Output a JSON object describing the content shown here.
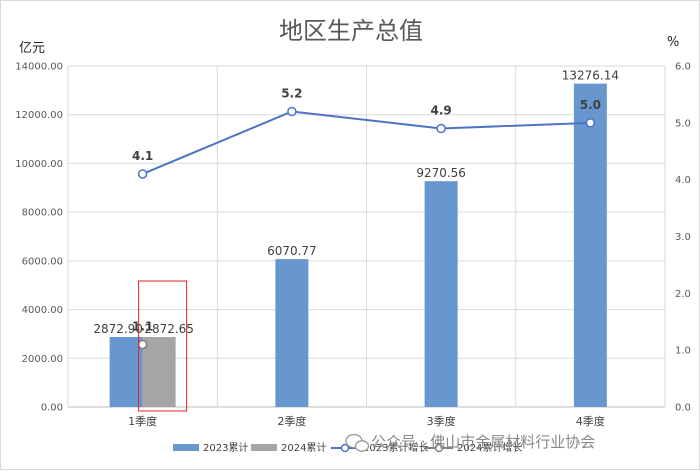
{
  "chart_data": {
    "type": "bar",
    "title": "地区生产总值",
    "ylabel_left": "亿元",
    "ylabel_right": "%",
    "categories": [
      "1季度",
      "2季度",
      "3季度",
      "4季度"
    ],
    "ylim_left": [
      0,
      14000
    ],
    "ylim_right": [
      0,
      6
    ],
    "left_ticks": [
      "0.00",
      "2000.00",
      "4000.00",
      "6000.00",
      "8000.00",
      "10000.00",
      "12000.00",
      "14000.00"
    ],
    "right_ticks": [
      "0.0",
      "1.0",
      "2.0",
      "3.0",
      "4.0",
      "5.0",
      "6.0"
    ],
    "grid": true,
    "legend_position": "bottom",
    "bar_series": [
      {
        "name": "2023累计",
        "values": [
          2872.9,
          6070.77,
          9270.56,
          13276.14
        ],
        "labels": [
          "2872.90",
          "6070.77",
          "9270.56",
          "13276.14"
        ],
        "color": "#6897cf"
      },
      {
        "name": "2024累计",
        "values": [
          2872.65,
          null,
          null,
          null
        ],
        "labels": [
          "2872.65",
          "",
          "",
          ""
        ],
        "color": "#a5a5a5"
      }
    ],
    "line_series": [
      {
        "name": "2023累计增长",
        "values": [
          4.1,
          5.2,
          4.9,
          5.0
        ],
        "labels": [
          "4.1",
          "5.2",
          "4.9",
          "5.0"
        ],
        "color": "#4f73c4"
      },
      {
        "name": "2024累计增长",
        "values": [
          1.1,
          null,
          null,
          null
        ],
        "labels": [
          "1.1",
          "",
          "",
          ""
        ],
        "color": "#7f7f7f"
      }
    ]
  },
  "watermark": "公众号 · 佛山市金属材料行业协会",
  "colors": {
    "highlight_box": "#e02020",
    "gridline": "#d9d9d9"
  }
}
